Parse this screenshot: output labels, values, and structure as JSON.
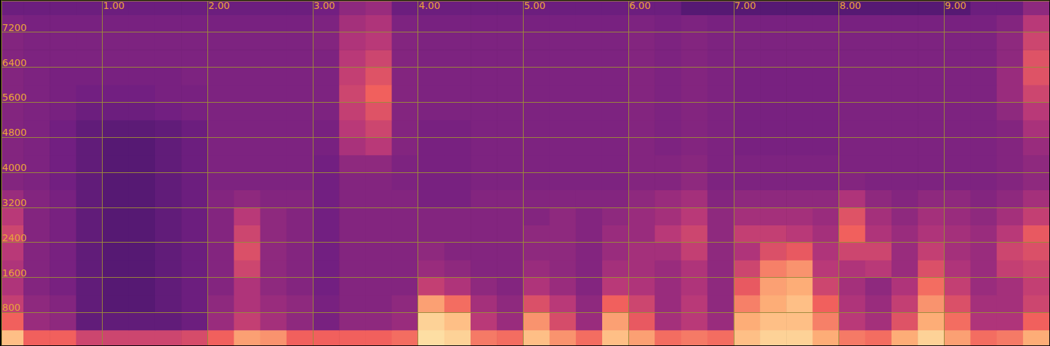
{
  "chart_data": {
    "type": "spectrogram",
    "grid": true,
    "xlim": [
      0.04,
      10
    ],
    "xticks": [
      {
        "value": 1,
        "label": "1.00"
      },
      {
        "value": 2,
        "label": "2.00"
      },
      {
        "value": 3,
        "label": "3.00"
      },
      {
        "value": 4,
        "label": "4.00"
      },
      {
        "value": 5,
        "label": "5.00"
      },
      {
        "value": 6,
        "label": "6.00"
      },
      {
        "value": 7,
        "label": "7.00"
      },
      {
        "value": 8,
        "label": "8.00"
      },
      {
        "value": 9,
        "label": "9.00"
      }
    ],
    "ylim": [
      50,
      7920
    ],
    "yticks": [
      800,
      1600,
      2400,
      3200,
      4000,
      4800,
      5600,
      6400,
      7200
    ],
    "zlim": [
      20,
      95
    ],
    "time_bins": [
      0,
      0.25,
      0.5,
      0.75,
      1,
      1.25,
      1.5,
      1.75,
      2,
      2.25,
      2.5,
      2.75,
      3,
      3.25,
      3.5,
      3.75,
      4,
      4.25,
      4.5,
      4.75,
      5,
      5.25,
      5.5,
      5.75,
      6,
      6.25,
      6.5,
      6.75,
      7,
      7.25,
      7.5,
      7.75,
      8,
      8.25,
      8.5,
      8.75,
      9,
      9.25,
      9.5,
      9.75,
      10
    ],
    "freq_bins": [
      0,
      400,
      800,
      1200,
      1600,
      2000,
      2400,
      2800,
      3200,
      3600,
      4000,
      4400,
      4800,
      5200,
      5600,
      6000,
      6400,
      6800,
      7200,
      7600,
      8000
    ],
    "cells": [
      [
        85,
        70,
        70,
        62,
        62,
        62,
        62,
        64,
        70,
        80,
        78,
        70,
        70,
        70,
        70,
        72,
        90,
        88,
        74,
        72,
        85,
        78,
        72,
        85,
        80,
        72,
        74,
        72,
        85,
        88,
        88,
        82,
        74,
        72,
        82,
        88,
        80,
        72,
        74,
        82
      ],
      [
        70,
        52,
        50,
        42,
        42,
        42,
        42,
        44,
        52,
        60,
        54,
        50,
        46,
        50,
        50,
        52,
        88,
        85,
        58,
        52,
        78,
        64,
        52,
        80,
        68,
        54,
        58,
        52,
        82,
        85,
        85,
        75,
        58,
        54,
        66,
        82,
        72,
        56,
        56,
        70
      ],
      [
        60,
        50,
        48,
        42,
        40,
        40,
        42,
        44,
        50,
        56,
        52,
        50,
        46,
        48,
        48,
        50,
        80,
        72,
        54,
        50,
        65,
        58,
        50,
        70,
        62,
        52,
        58,
        50,
        75,
        82,
        85,
        70,
        56,
        52,
        60,
        78,
        65,
        54,
        54,
        62
      ],
      [
        56,
        48,
        46,
        42,
        40,
        40,
        42,
        44,
        48,
        56,
        50,
        48,
        45,
        48,
        48,
        48,
        60,
        56,
        50,
        48,
        56,
        52,
        48,
        58,
        56,
        52,
        56,
        50,
        68,
        80,
        82,
        62,
        54,
        50,
        56,
        72,
        60,
        52,
        54,
        60
      ],
      [
        56,
        48,
        46,
        42,
        40,
        40,
        42,
        44,
        48,
        62,
        50,
        48,
        45,
        48,
        48,
        48,
        52,
        50,
        48,
        48,
        52,
        50,
        48,
        54,
        54,
        52,
        56,
        50,
        62,
        75,
        78,
        58,
        56,
        58,
        52,
        65,
        56,
        52,
        60,
        62
      ],
      [
        58,
        48,
        46,
        42,
        40,
        40,
        42,
        44,
        48,
        65,
        50,
        48,
        45,
        48,
        48,
        48,
        50,
        48,
        48,
        48,
        50,
        50,
        48,
        52,
        54,
        54,
        60,
        50,
        56,
        65,
        68,
        56,
        62,
        62,
        52,
        60,
        54,
        52,
        62,
        65
      ],
      [
        62,
        48,
        46,
        42,
        40,
        40,
        42,
        44,
        48,
        62,
        50,
        48,
        45,
        48,
        48,
        48,
        48,
        48,
        48,
        48,
        50,
        50,
        48,
        52,
        52,
        58,
        62,
        50,
        60,
        60,
        58,
        54,
        70,
        56,
        52,
        56,
        54,
        52,
        58,
        68
      ],
      [
        58,
        48,
        46,
        42,
        40,
        40,
        42,
        44,
        48,
        58,
        50,
        48,
        45,
        48,
        48,
        48,
        48,
        48,
        48,
        48,
        48,
        50,
        48,
        50,
        52,
        54,
        58,
        50,
        54,
        54,
        54,
        52,
        66,
        54,
        50,
        54,
        52,
        50,
        54,
        60
      ],
      [
        52,
        48,
        46,
        42,
        40,
        40,
        42,
        44,
        48,
        50,
        48,
        48,
        45,
        48,
        48,
        48,
        46,
        46,
        48,
        48,
        48,
        48,
        48,
        48,
        50,
        52,
        54,
        48,
        50,
        50,
        50,
        50,
        56,
        50,
        48,
        50,
        50,
        48,
        50,
        54
      ],
      [
        48,
        47,
        45,
        42,
        40,
        40,
        42,
        44,
        47,
        47,
        47,
        47,
        45,
        48,
        48,
        47,
        46,
        46,
        47,
        47,
        47,
        47,
        47,
        47,
        48,
        48,
        50,
        47,
        47,
        47,
        47,
        47,
        48,
        47,
        47,
        47,
        47,
        47,
        48,
        50
      ],
      [
        48,
        47,
        45,
        42,
        40,
        40,
        42,
        44,
        47,
        47,
        47,
        47,
        45,
        50,
        50,
        47,
        46,
        46,
        47,
        47,
        47,
        47,
        47,
        47,
        48,
        48,
        49,
        47,
        47,
        47,
        47,
        47,
        47,
        47,
        47,
        47,
        47,
        47,
        48,
        50
      ],
      [
        48,
        47,
        45,
        42,
        40,
        40,
        42,
        44,
        47,
        47,
        47,
        47,
        46,
        55,
        58,
        48,
        46,
        46,
        47,
        47,
        47,
        47,
        47,
        47,
        48,
        47,
        48,
        47,
        46,
        46,
        46,
        46,
        47,
        47,
        47,
        47,
        47,
        47,
        48,
        52
      ],
      [
        48,
        47,
        45,
        42,
        41,
        41,
        42,
        44,
        47,
        47,
        47,
        47,
        46,
        58,
        62,
        48,
        46,
        46,
        47,
        47,
        47,
        47,
        47,
        47,
        48,
        47,
        48,
        47,
        46,
        46,
        46,
        46,
        47,
        47,
        47,
        47,
        47,
        47,
        48,
        55
      ],
      [
        48,
        47,
        46,
        44,
        44,
        44,
        45,
        46,
        47,
        47,
        47,
        47,
        47,
        60,
        66,
        48,
        47,
        47,
        47,
        47,
        47,
        47,
        47,
        47,
        48,
        47,
        48,
        47,
        46,
        46,
        46,
        46,
        47,
        47,
        47,
        47,
        47,
        47,
        50,
        58
      ],
      [
        48,
        47,
        46,
        45,
        45,
        45,
        46,
        46,
        47,
        47,
        47,
        47,
        47,
        62,
        70,
        48,
        47,
        47,
        47,
        47,
        47,
        47,
        47,
        47,
        48,
        47,
        48,
        47,
        46,
        46,
        46,
        46,
        47,
        47,
        47,
        47,
        47,
        47,
        52,
        62
      ],
      [
        48,
        47,
        46,
        46,
        46,
        46,
        46,
        47,
        47,
        47,
        47,
        47,
        47,
        60,
        66,
        48,
        47,
        47,
        47,
        47,
        47,
        47,
        47,
        47,
        48,
        47,
        48,
        47,
        46,
        46,
        46,
        46,
        47,
        47,
        47,
        47,
        47,
        47,
        52,
        66
      ],
      [
        48,
        47,
        47,
        47,
        47,
        47,
        47,
        47,
        47,
        47,
        47,
        47,
        47,
        58,
        62,
        48,
        47,
        47,
        47,
        47,
        47,
        47,
        47,
        47,
        48,
        47,
        48,
        47,
        47,
        47,
        47,
        47,
        47,
        47,
        47,
        47,
        47,
        47,
        50,
        66
      ],
      [
        48,
        47,
        47,
        47,
        47,
        47,
        47,
        47,
        47,
        47,
        47,
        47,
        48,
        56,
        58,
        48,
        47,
        47,
        47,
        47,
        47,
        47,
        47,
        47,
        48,
        47,
        48,
        47,
        47,
        47,
        47,
        47,
        47,
        47,
        47,
        47,
        47,
        47,
        50,
        62
      ],
      [
        47,
        46,
        46,
        46,
        46,
        46,
        46,
        46,
        46,
        46,
        46,
        46,
        47,
        54,
        56,
        47,
        46,
        46,
        46,
        46,
        46,
        46,
        46,
        46,
        47,
        46,
        47,
        46,
        46,
        46,
        46,
        46,
        46,
        46,
        46,
        46,
        46,
        46,
        48,
        58
      ],
      [
        44,
        44,
        44,
        44,
        44,
        44,
        44,
        44,
        44,
        44,
        44,
        44,
        45,
        50,
        52,
        44,
        44,
        44,
        44,
        44,
        44,
        44,
        44,
        44,
        44,
        44,
        40,
        40,
        40,
        40,
        40,
        40,
        40,
        40,
        40,
        40,
        40,
        44,
        44,
        50
      ]
    ]
  }
}
